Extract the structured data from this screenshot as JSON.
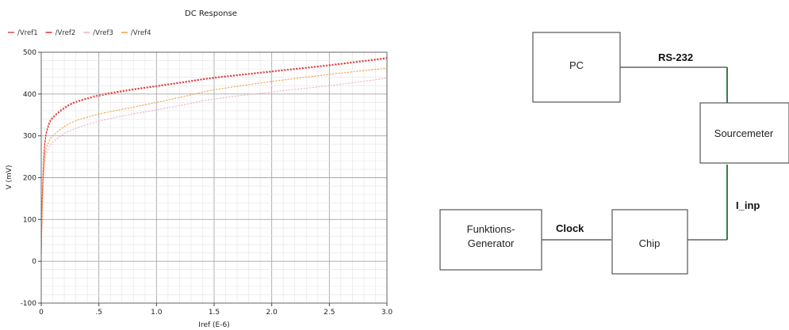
{
  "chart_data": {
    "type": "line",
    "title": "DC Response",
    "xlabel": "Iref (E-6)",
    "ylabel": "V (mV)",
    "xlim": [
      0,
      3.0
    ],
    "ylim": [
      -100,
      500
    ],
    "x_ticks": [
      0,
      0.5,
      1.0,
      1.5,
      2.0,
      2.5,
      3.0
    ],
    "x_tick_labels": [
      "0",
      ".5",
      "1.0",
      "1.5",
      "2.0",
      "2.5",
      "3.0"
    ],
    "y_ticks": [
      -100,
      0,
      100,
      200,
      300,
      400,
      500
    ],
    "y_tick_labels": [
      "-100",
      "0",
      "100",
      "200",
      "300",
      "400",
      "500"
    ],
    "grid": true,
    "legend_position": "top-left",
    "series": [
      {
        "name": "/Vref1",
        "color": "#d04a4a",
        "x": [
          0.0,
          0.01,
          0.03,
          0.06,
          0.1,
          0.2,
          0.3,
          0.5,
          0.75,
          1.0,
          1.25,
          1.5,
          2.0,
          2.5,
          3.0
        ],
        "y": [
          20,
          160,
          280,
          325,
          345,
          368,
          382,
          398,
          410,
          420,
          430,
          440,
          455,
          470,
          487
        ]
      },
      {
        "name": "/Vref2",
        "color": "#e03030",
        "x": [
          0.0,
          0.01,
          0.03,
          0.06,
          0.1,
          0.2,
          0.3,
          0.5,
          0.75,
          1.0,
          1.25,
          1.5,
          2.0,
          2.5,
          3.0
        ],
        "y": [
          18,
          155,
          275,
          320,
          342,
          365,
          380,
          395,
          408,
          418,
          428,
          438,
          453,
          468,
          485
        ]
      },
      {
        "name": "/Vref3",
        "color": "#f0b0c4",
        "x": [
          0.0,
          0.01,
          0.03,
          0.06,
          0.1,
          0.2,
          0.3,
          0.5,
          0.75,
          1.0,
          1.25,
          1.5,
          2.0,
          2.5,
          3.0
        ],
        "y": [
          15,
          130,
          235,
          268,
          285,
          305,
          318,
          335,
          350,
          362,
          375,
          388,
          405,
          420,
          438
        ]
      },
      {
        "name": "/Vref4",
        "color": "#f0a040",
        "x": [
          0.0,
          0.01,
          0.03,
          0.06,
          0.1,
          0.2,
          0.3,
          0.5,
          0.75,
          1.0,
          1.25,
          1.5,
          2.0,
          2.5,
          3.0
        ],
        "y": [
          16,
          140,
          250,
          282,
          300,
          322,
          336,
          352,
          366,
          380,
          395,
          410,
          430,
          447,
          462
        ]
      }
    ]
  },
  "diagram": {
    "boxes": {
      "pc": "PC",
      "sourcemeter": "Sourcemeter",
      "funktions_line1": "Funktions-",
      "funktions_line2": "Generator",
      "chip": "Chip"
    },
    "connections": {
      "rs232": "RS-232",
      "clock": "Clock",
      "i_inp": "I_inp"
    },
    "colors": {
      "line": "#444444",
      "green_line": "#3a7a52",
      "box_border": "#555555"
    }
  }
}
